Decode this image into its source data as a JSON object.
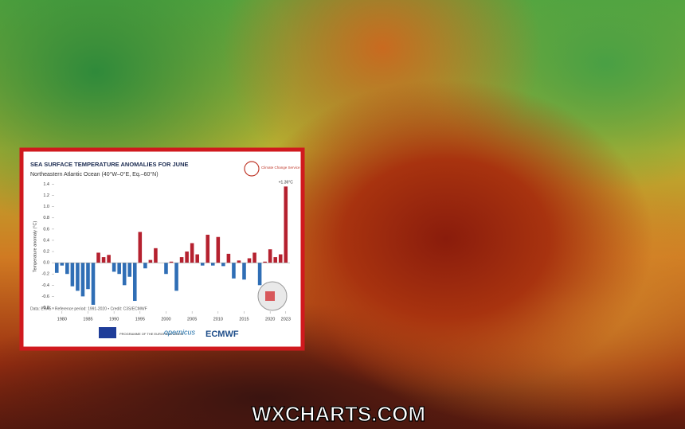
{
  "chart_data": {
    "type": "bar",
    "title": "SEA SURFACE TEMPERATURE ANOMALIES FOR JUNE",
    "subtitle": "Northeastern Atlantic Ocean (40°W–0°E, Eq.–60°N)",
    "y_label": "Temperature anomaly (°C)",
    "footnote": "Data: ERA5 • Reference period: 1991-2020 • Credit: C3S/ECMWF",
    "x": [
      1979,
      1980,
      1981,
      1982,
      1983,
      1984,
      1985,
      1986,
      1987,
      1988,
      1989,
      1990,
      1991,
      1992,
      1993,
      1994,
      1995,
      1996,
      1997,
      1998,
      1999,
      2000,
      2001,
      2002,
      2003,
      2004,
      2005,
      2006,
      2007,
      2008,
      2009,
      2010,
      2011,
      2012,
      2013,
      2014,
      2015,
      2016,
      2017,
      2018,
      2019,
      2020,
      2021,
      2022,
      2023
    ],
    "values": [
      -0.18,
      -0.05,
      -0.2,
      -0.42,
      -0.5,
      -0.6,
      -0.47,
      -0.75,
      0.18,
      0.1,
      0.14,
      -0.16,
      -0.2,
      -0.4,
      -0.25,
      -0.68,
      0.55,
      -0.1,
      0.05,
      0.26,
      0.0,
      -0.2,
      0.02,
      -0.5,
      0.1,
      0.2,
      0.35,
      0.15,
      -0.05,
      0.5,
      -0.05,
      0.46,
      -0.06,
      0.16,
      -0.28,
      0.04,
      -0.3,
      0.08,
      0.18,
      -0.4,
      0.02,
      0.24,
      0.1,
      0.15,
      1.36
    ],
    "value_labels": [
      null,
      null,
      null,
      null,
      null,
      null,
      null,
      null,
      null,
      null,
      null,
      null,
      null,
      null,
      null,
      null,
      null,
      null,
      null,
      null,
      null,
      null,
      null,
      null,
      null,
      null,
      null,
      null,
      null,
      null,
      null,
      null,
      null,
      null,
      null,
      null,
      null,
      null,
      null,
      null,
      null,
      null,
      null,
      null,
      "+1.36°C"
    ],
    "positive_color": "#b5212f",
    "negative_color": "#2f6eb5",
    "xlim": [
      1978.5,
      2023.8
    ],
    "xticks": [
      1980,
      1985,
      1990,
      1995,
      2000,
      2005,
      2010,
      2015,
      2020,
      2023
    ],
    "ylim": [
      -0.85,
      1.45
    ],
    "yticks": [
      {
        "value": -0.8,
        "label": "-0.8"
      },
      {
        "value": -0.6,
        "label": "-0.6"
      },
      {
        "value": -0.4,
        "label": "-0.4"
      },
      {
        "value": -0.2,
        "label": "-0.2"
      },
      {
        "value": 0,
        "label": "0.0"
      },
      {
        "value": 0.2,
        "label": "0.2"
      },
      {
        "value": 0.4,
        "label": "0.4"
      },
      {
        "value": 0.6,
        "label": "0.6"
      },
      {
        "value": 0.8,
        "label": "0.8"
      },
      {
        "value": 1,
        "label": "1.0"
      },
      {
        "value": 1.2,
        "label": "1.2"
      },
      {
        "value": 1.4,
        "label": "1.4"
      }
    ],
    "grid": false
  },
  "logos": {
    "service": "Climate Change Service",
    "eu": "PROGRAMME OF THE EUROPEAN UNION",
    "copernicus": "opernicus",
    "ecmwf": "ECMWF"
  },
  "watermark": "WXCHARTS.COM"
}
